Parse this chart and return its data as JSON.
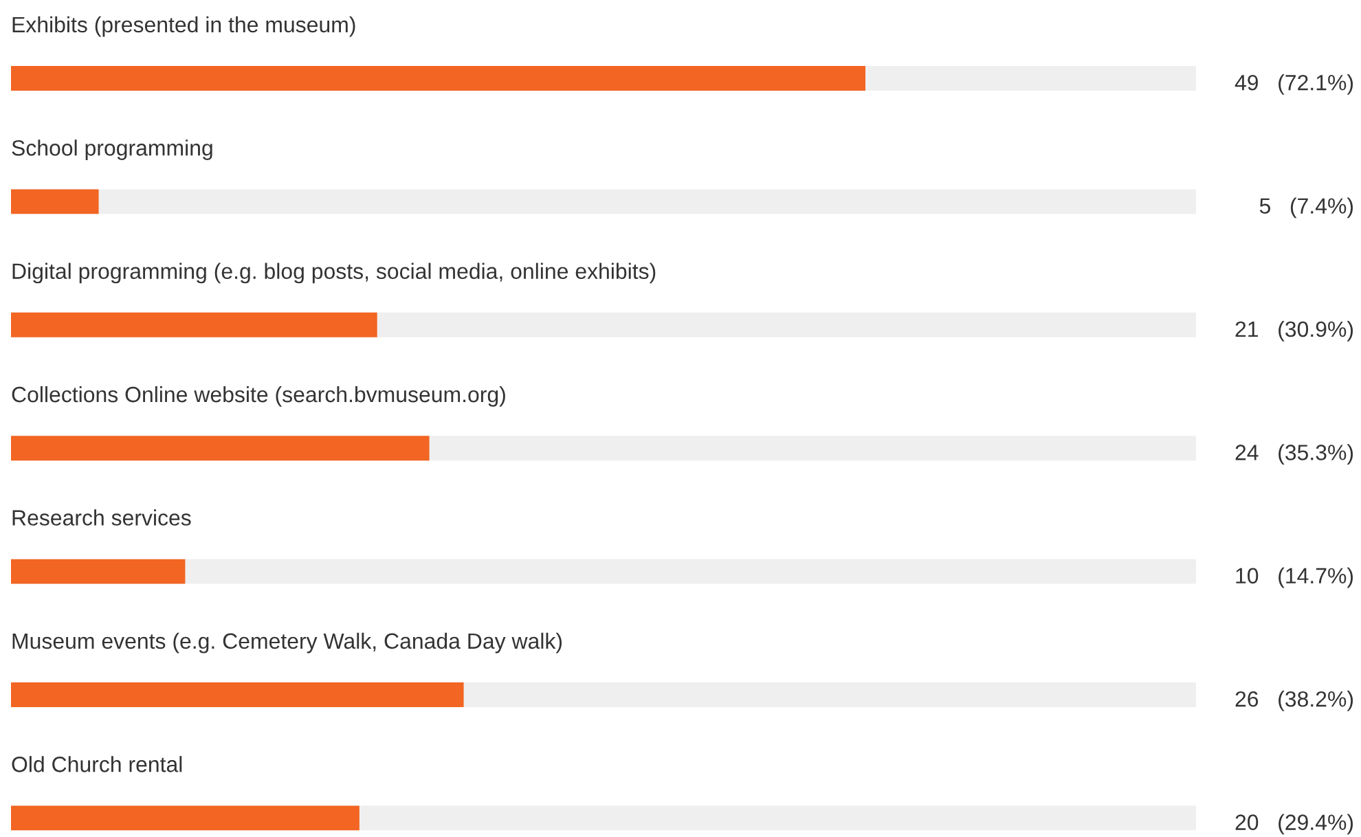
{
  "chart_data": {
    "type": "bar",
    "orientation": "horizontal",
    "categories": [
      "Exhibits (presented in the museum)",
      "School programming",
      "Digital programming (e.g. blog posts, social media, online exhibits)",
      "Collections Online website (search.bvmuseum.org)",
      "Research services",
      "Museum events (e.g. Cemetery Walk, Canada Day walk)",
      "Old Church rental"
    ],
    "values": [
      72.1,
      7.4,
      30.9,
      35.3,
      14.7,
      38.2,
      29.4
    ],
    "value_labels": [
      "49   (72.1%)",
      "5   (7.4%)",
      "21   (30.9%)",
      "24   (35.3%)",
      "10   (14.7%)",
      "26   (38.2%)",
      "20   (29.4%)"
    ],
    "color": "#f26522",
    "xlim": [
      0,
      100
    ]
  }
}
